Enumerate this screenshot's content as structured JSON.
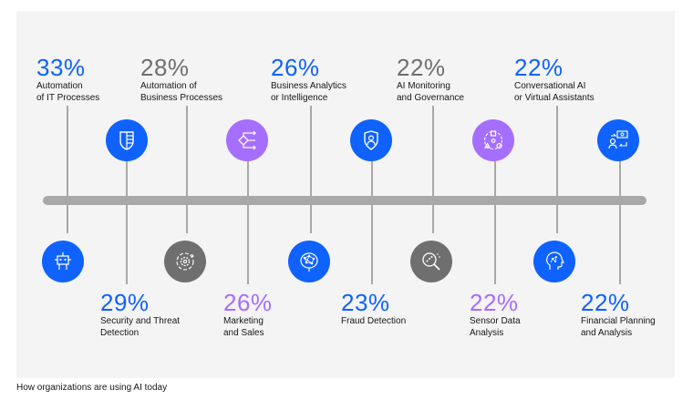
{
  "caption": "How organizations are using AI today",
  "colors": {
    "blue": "#0f62fe",
    "gray": "#6f6f6f",
    "purple": "#a56eff",
    "axis": "#a8a8a8"
  },
  "top_items": [
    {
      "percent": "33%",
      "line1": "Automation",
      "line2": "of IT Processes",
      "color": "#0f62fe",
      "icon": "robot-icon"
    },
    {
      "percent": "28%",
      "line1": "Automation of",
      "line2": "Business Processes",
      "color": "#6f6f6f",
      "icon": "cog-icon"
    },
    {
      "percent": "26%",
      "line1": "Business Analytics",
      "line2": "or Intelligence",
      "color": "#0f62fe",
      "icon": "network-icon"
    },
    {
      "percent": "22%",
      "line1": "AI Monitoring",
      "line2": "and Governance",
      "color": "#6f6f6f",
      "icon": "magnifier-icon"
    },
    {
      "percent": "22%",
      "line1": "Conversational AI",
      "line2": "or Virtual Assistants",
      "color": "#0f62fe",
      "icon": "ai-head-icon"
    }
  ],
  "bottom_items": [
    {
      "percent": "29%",
      "line1": "Security and Threat",
      "line2": "Detection",
      "color": "#0f62fe",
      "icon": "shield-document-icon"
    },
    {
      "percent": "26%",
      "line1": "Marketing",
      "line2": "and Sales",
      "color": "#a56eff",
      "icon": "flow-arrows-icon"
    },
    {
      "percent": "23%",
      "line1": "Fraud Detection",
      "line2": "",
      "color": "#0f62fe",
      "icon": "shield-user-icon"
    },
    {
      "percent": "22%",
      "line1": "Sensor Data",
      "line2": "Analysis",
      "color": "#a56eff",
      "icon": "sensor-shapes-icon"
    },
    {
      "percent": "22%",
      "line1": "Financial Planning",
      "line2": "and Analysis",
      "color": "#0f62fe",
      "icon": "finance-exchange-icon"
    }
  ]
}
